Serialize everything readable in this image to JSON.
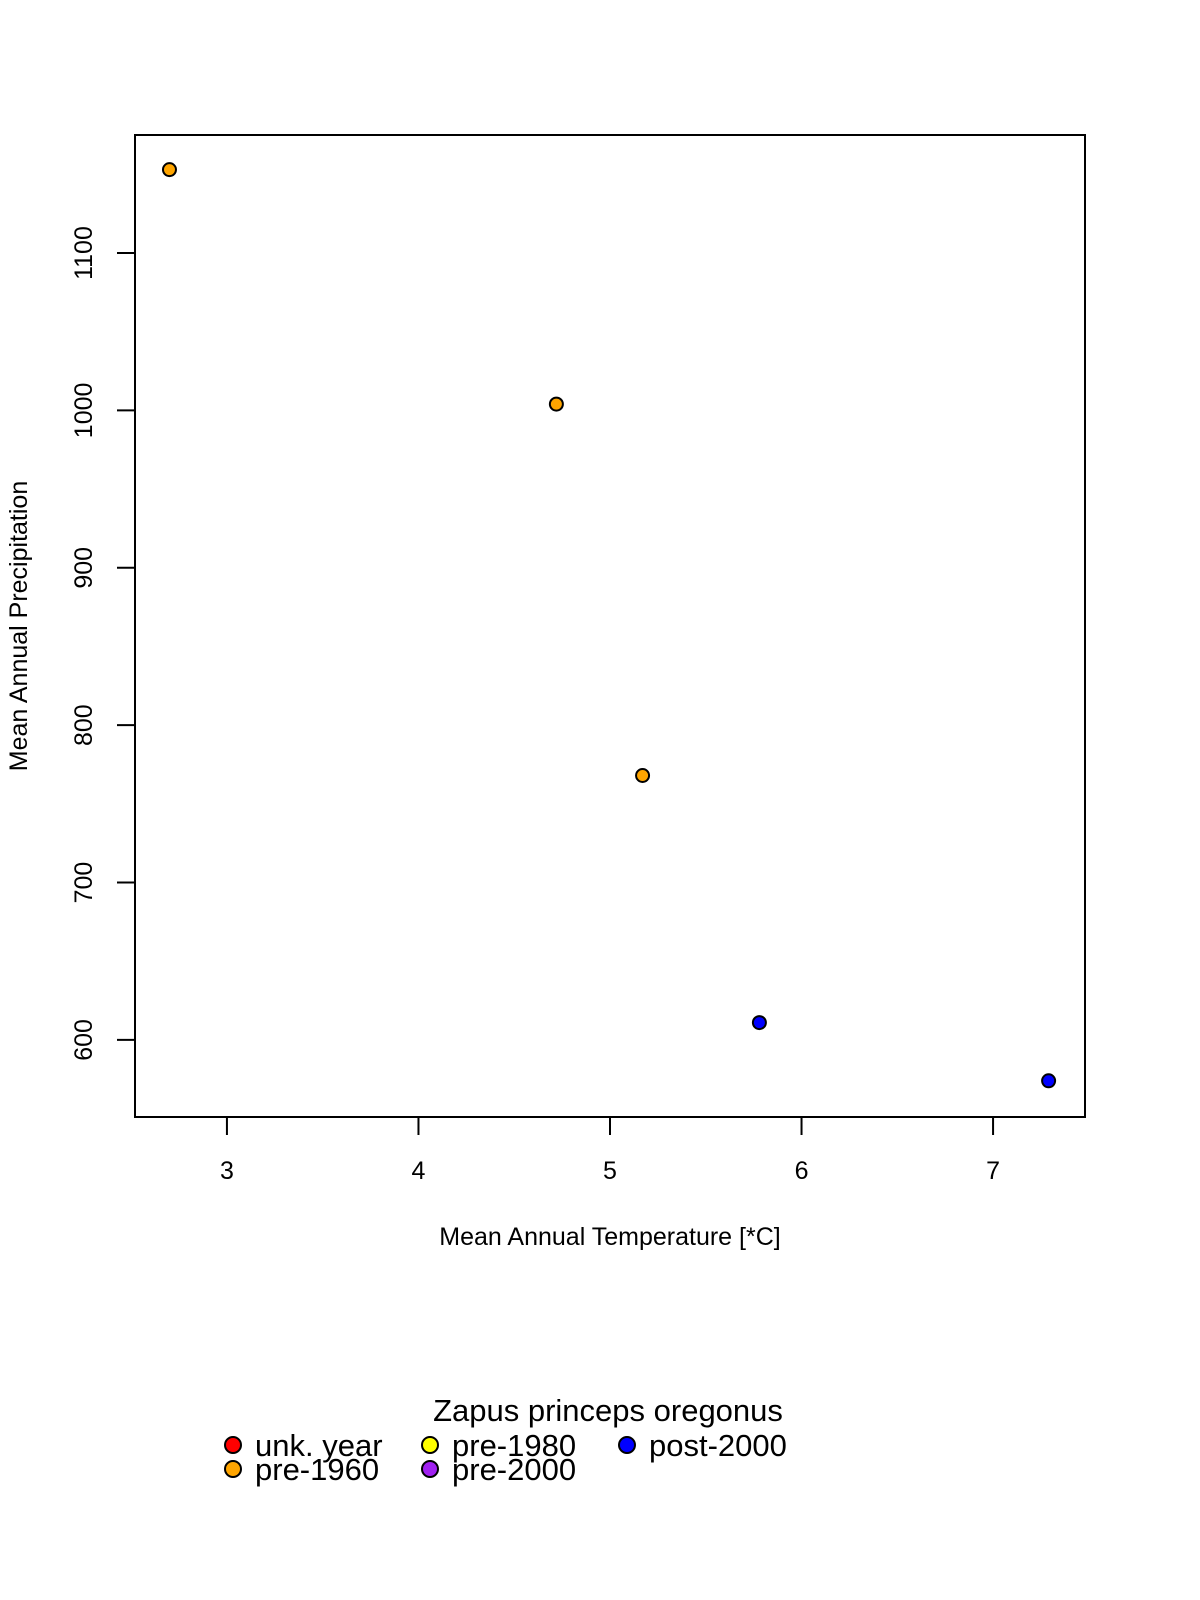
{
  "chart_data": {
    "type": "scatter",
    "title": "",
    "xlabel": "Mean Annual Temperature [*C]",
    "ylabel": "Mean Annual Precipitation",
    "xlim": [
      2.52,
      7.48
    ],
    "ylim": [
      551,
      1175
    ],
    "x_ticks": [
      3,
      4,
      5,
      6,
      7
    ],
    "y_ticks": [
      600,
      700,
      800,
      900,
      1000,
      1100
    ],
    "grid": false,
    "legend": {
      "title": "Zapus princeps oregonus",
      "position": "bottom",
      "entries": [
        {
          "label": "unk. year",
          "color": "#ff0000"
        },
        {
          "label": "pre-1960",
          "color": "#ffa500"
        },
        {
          "label": "pre-1980",
          "color": "#ffff00"
        },
        {
          "label": "pre-2000",
          "color": "#a020f0"
        },
        {
          "label": "post-2000",
          "color": "#0000ff"
        }
      ]
    },
    "series": [
      {
        "name": "unk. year",
        "color": "#ff0000",
        "points": []
      },
      {
        "name": "pre-1960",
        "color": "#ffa500",
        "points": [
          [
            2.7,
            1153
          ],
          [
            4.72,
            1004
          ],
          [
            5.17,
            768
          ]
        ]
      },
      {
        "name": "pre-1980",
        "color": "#ffff00",
        "points": []
      },
      {
        "name": "pre-2000",
        "color": "#a020f0",
        "points": []
      },
      {
        "name": "post-2000",
        "color": "#0000ff",
        "points": [
          [
            5.78,
            611
          ],
          [
            7.29,
            574
          ]
        ]
      }
    ]
  }
}
